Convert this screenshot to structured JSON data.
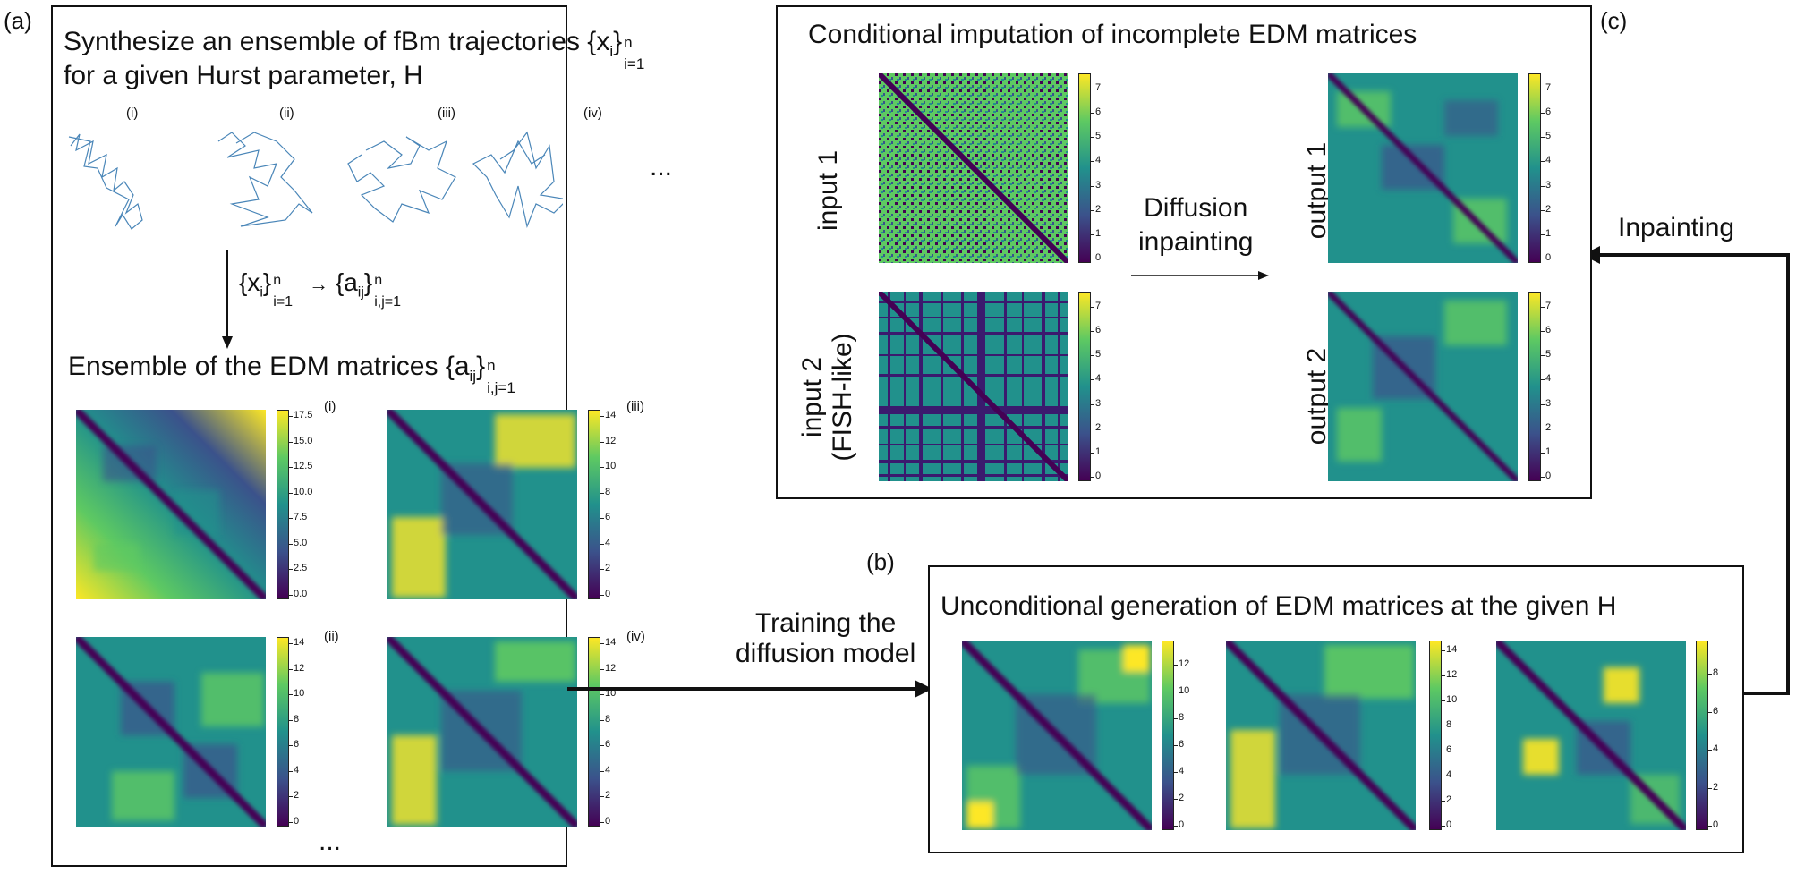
{
  "labels": {
    "a": "(a)",
    "b": "(b)",
    "c": "(c)"
  },
  "panel_a": {
    "title_line1": "Synthesize an ensemble of fBm trajectories",
    "title_sym": "{x",
    "title_sub": "i",
    "title_sup": "n",
    "title_sub2": "i=1",
    "title_line2": "for a given Hurst parameter, H",
    "trajectory_labels": [
      "(i)",
      "(ii)",
      "(iii)",
      "(iv)"
    ],
    "ellipsis": "...",
    "transform_lhs": "{x",
    "transform_lhs_sub": "i",
    "transform_lhs_close": "}",
    "transform_lhs_sup": "n",
    "transform_lhs_sub2": "i=1",
    "transform_arrow": "→",
    "transform_rhs": "{a",
    "transform_rhs_sub": "ij",
    "transform_rhs_close": "}",
    "transform_rhs_sup": "n",
    "transform_rhs_sub2": "i,j=1",
    "ensemble_title": "Ensemble of the EDM matrices {a",
    "ensemble_sub": "ij",
    "ensemble_close": "}",
    "ensemble_sup": "n",
    "ensemble_sub2": "i,j=1",
    "matrix_labels": [
      "(i)",
      "(iii)",
      "(ii)",
      "(iv)"
    ],
    "colorbars": [
      [
        "17.5",
        "15.0",
        "12.5",
        "10.0",
        "7.5",
        "5.0",
        "2.5",
        "0.0"
      ],
      [
        "14",
        "12",
        "10",
        "8",
        "6",
        "4",
        "2",
        "0"
      ],
      [
        "14",
        "12",
        "10",
        "8",
        "6",
        "4",
        "2",
        "0"
      ],
      [
        "14",
        "12",
        "10",
        "8",
        "6",
        "4",
        "2",
        "0"
      ]
    ],
    "bottom_ellipsis": "..."
  },
  "arrow_training": {
    "line1": "Training the",
    "line2": "diffusion model"
  },
  "panel_b": {
    "title": "Unconditional generation of EDM matrices at the given H",
    "colorbars": [
      [
        "12",
        "10",
        "8",
        "6",
        "4",
        "2",
        "0"
      ],
      [
        "14",
        "12",
        "10",
        "8",
        "6",
        "4",
        "2",
        "0"
      ],
      [
        "8",
        "6",
        "4",
        "2",
        "0"
      ]
    ]
  },
  "arrow_inpainting": {
    "label": "Inpainting"
  },
  "panel_c": {
    "title": "Conditional imputation of incomplete EDM matrices",
    "input1": "input 1",
    "input2_line1": "input 2",
    "input2_line2": "(FISH-like)",
    "diffusion_line1": "Diffusion",
    "diffusion_line2": "inpainting",
    "output1": "output 1",
    "output2": "output 2",
    "colorbar": [
      "7",
      "6",
      "5",
      "4",
      "3",
      "2",
      "1",
      "0"
    ]
  },
  "colors": {
    "viridis_dark": "#440154",
    "viridis_blue": "#3b528b",
    "viridis_teal": "#21918c",
    "viridis_green": "#5ec962",
    "viridis_yellow": "#fde725"
  }
}
